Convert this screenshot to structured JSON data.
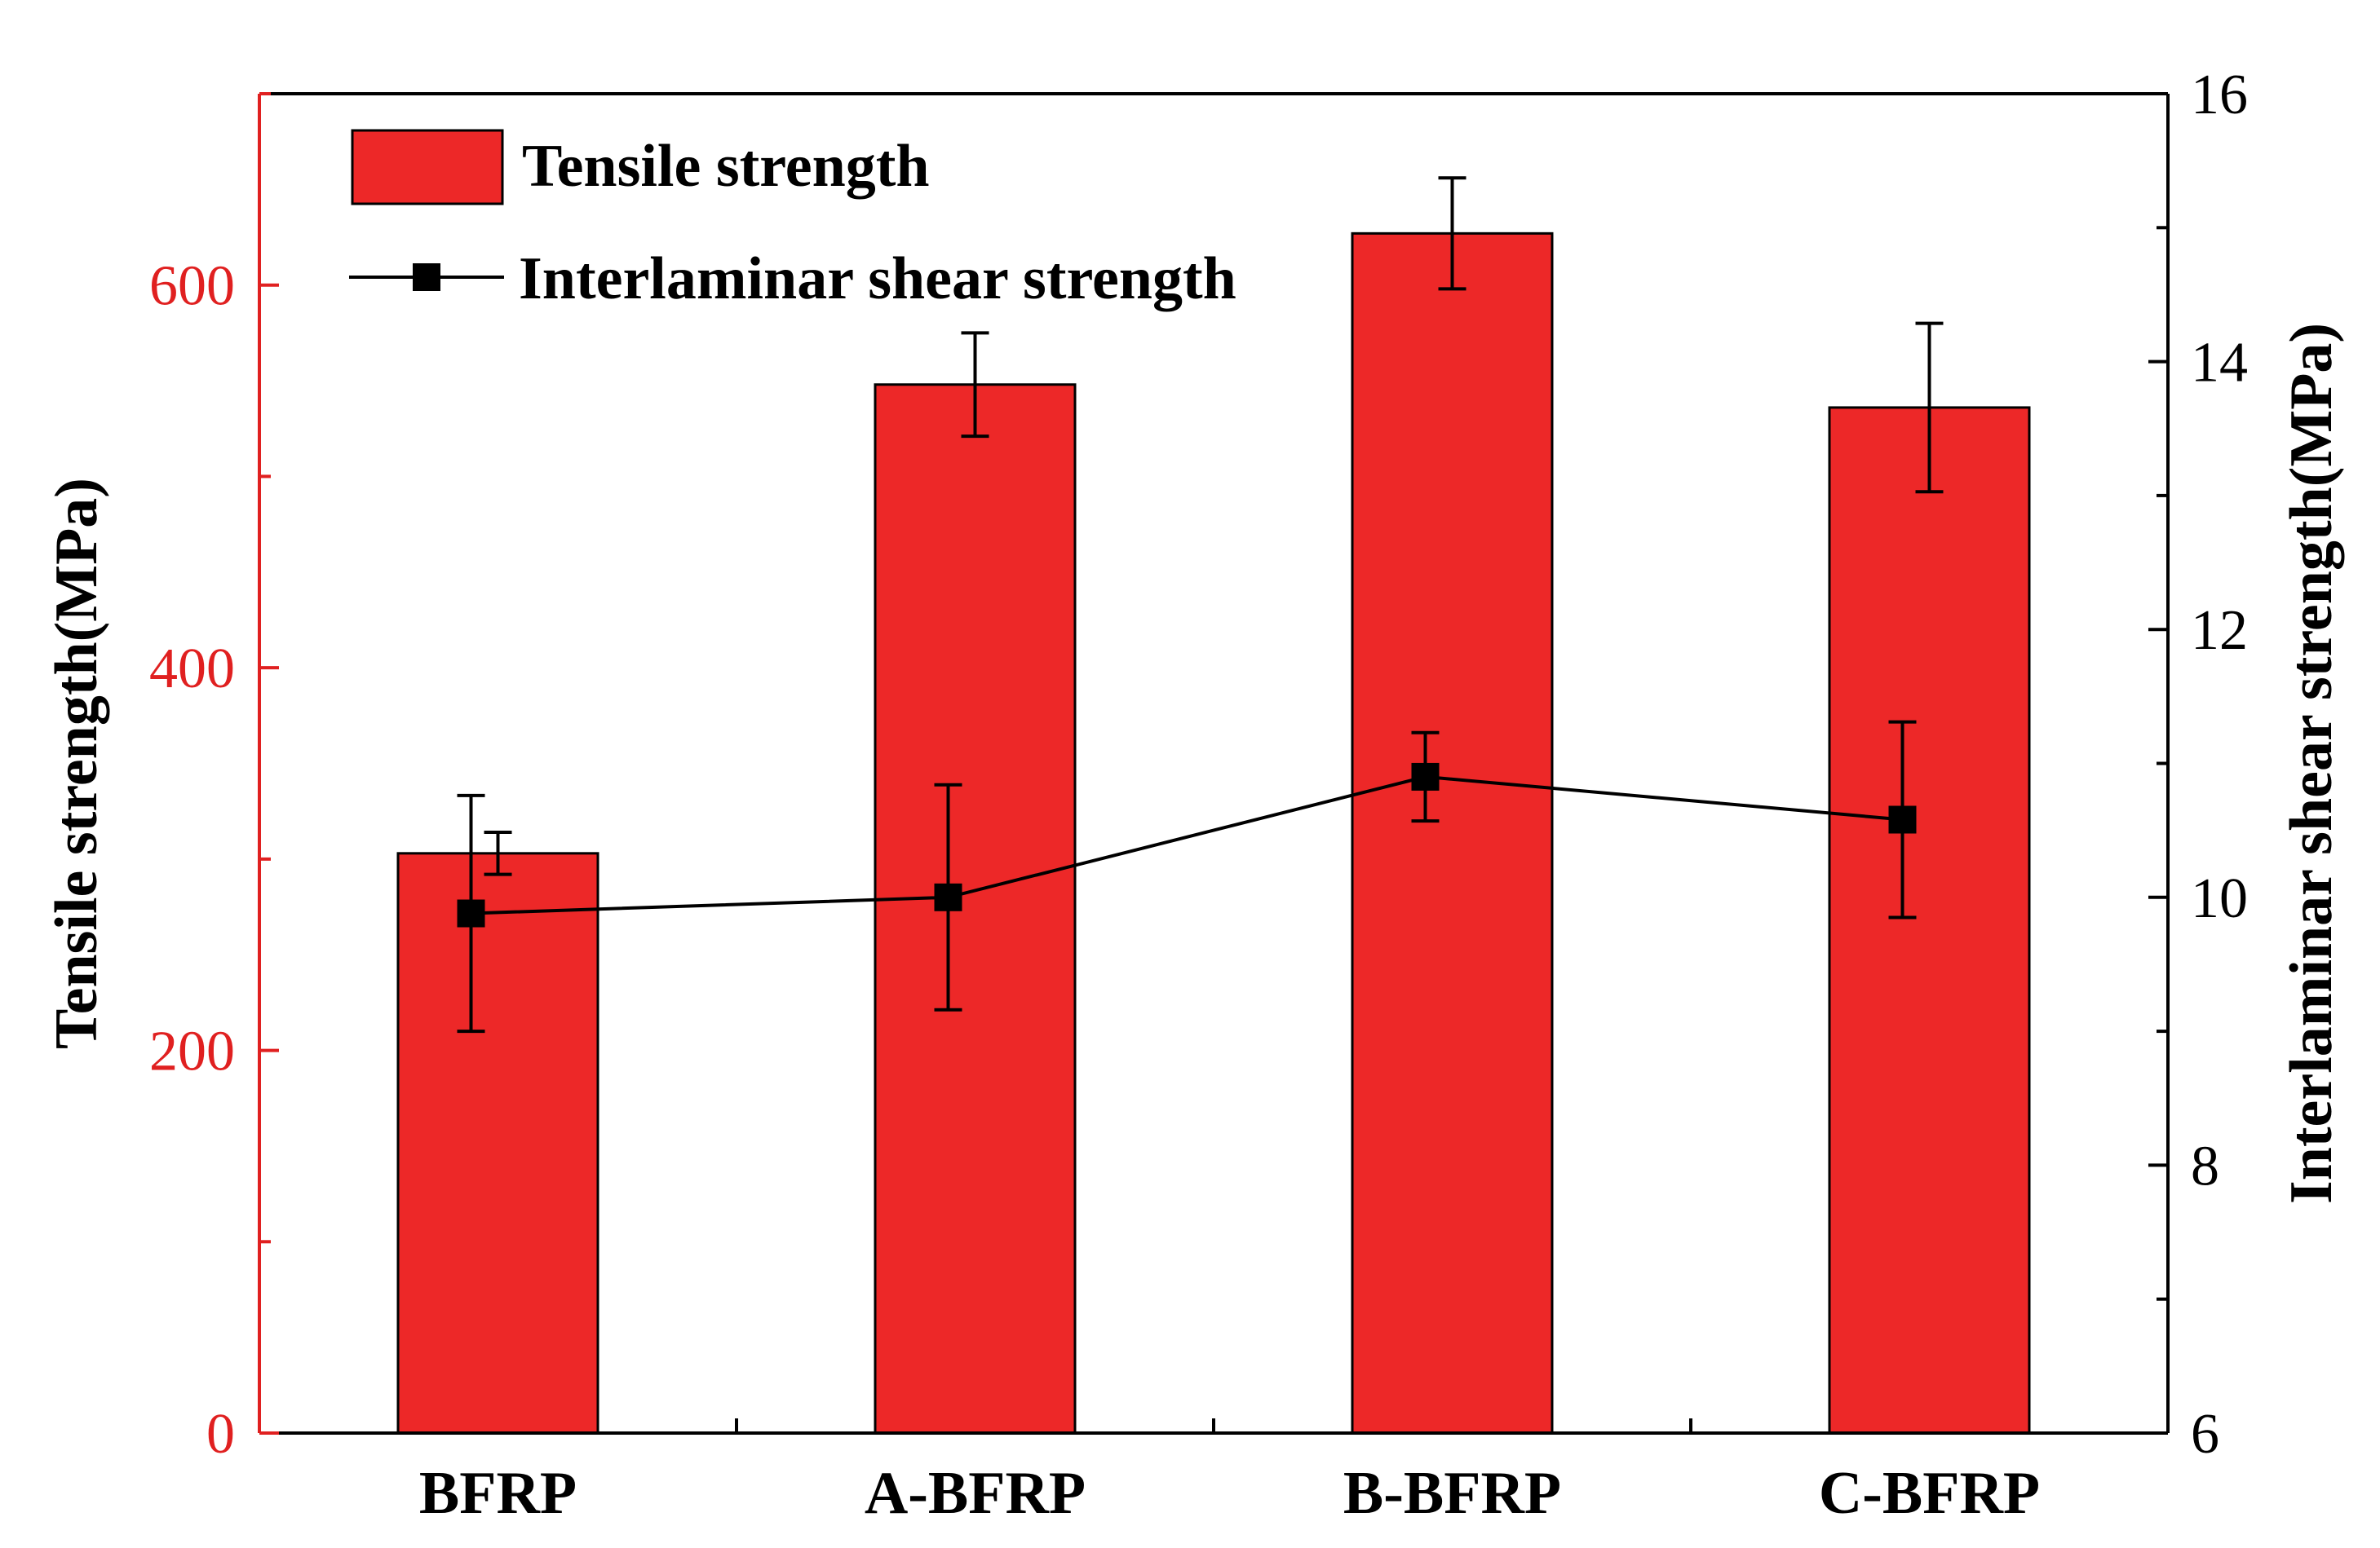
{
  "chart_data": {
    "type": "bar",
    "categories": [
      "BFRP",
      "A-BFRP",
      "B-BFRP",
      "C-BFRP"
    ],
    "series": [
      {
        "name": "Tensile strength",
        "kind": "bar",
        "axis": "left",
        "values": [
          303,
          548,
          627,
          536
        ],
        "errors": [
          11,
          27,
          29,
          44
        ]
      },
      {
        "name": "Interlaminar shear strength",
        "kind": "line",
        "axis": "right",
        "values": [
          9.88,
          10.0,
          10.9,
          10.58
        ],
        "errors": [
          0.88,
          0.84,
          0.33,
          0.73
        ]
      }
    ],
    "ylabel_left": "Tensile strength(MPa)",
    "ylabel_right": "Interlaminar shear strength(MPa)",
    "xlabel": "",
    "ylim_left": [
      0,
      700
    ],
    "ylim_right": [
      6,
      16
    ],
    "yticks_left": [
      "0",
      "200",
      "400",
      "600"
    ],
    "yticks_right": [
      "6",
      "8",
      "10",
      "12",
      "14",
      "16"
    ],
    "legend": {
      "placement": "top-left",
      "bar_label": "Tensile strength",
      "line_label": "Interlaminar shear strength"
    },
    "colors": {
      "bar_fill": "#ed2828",
      "left_axis": "#e02020",
      "line": "#000000"
    }
  }
}
